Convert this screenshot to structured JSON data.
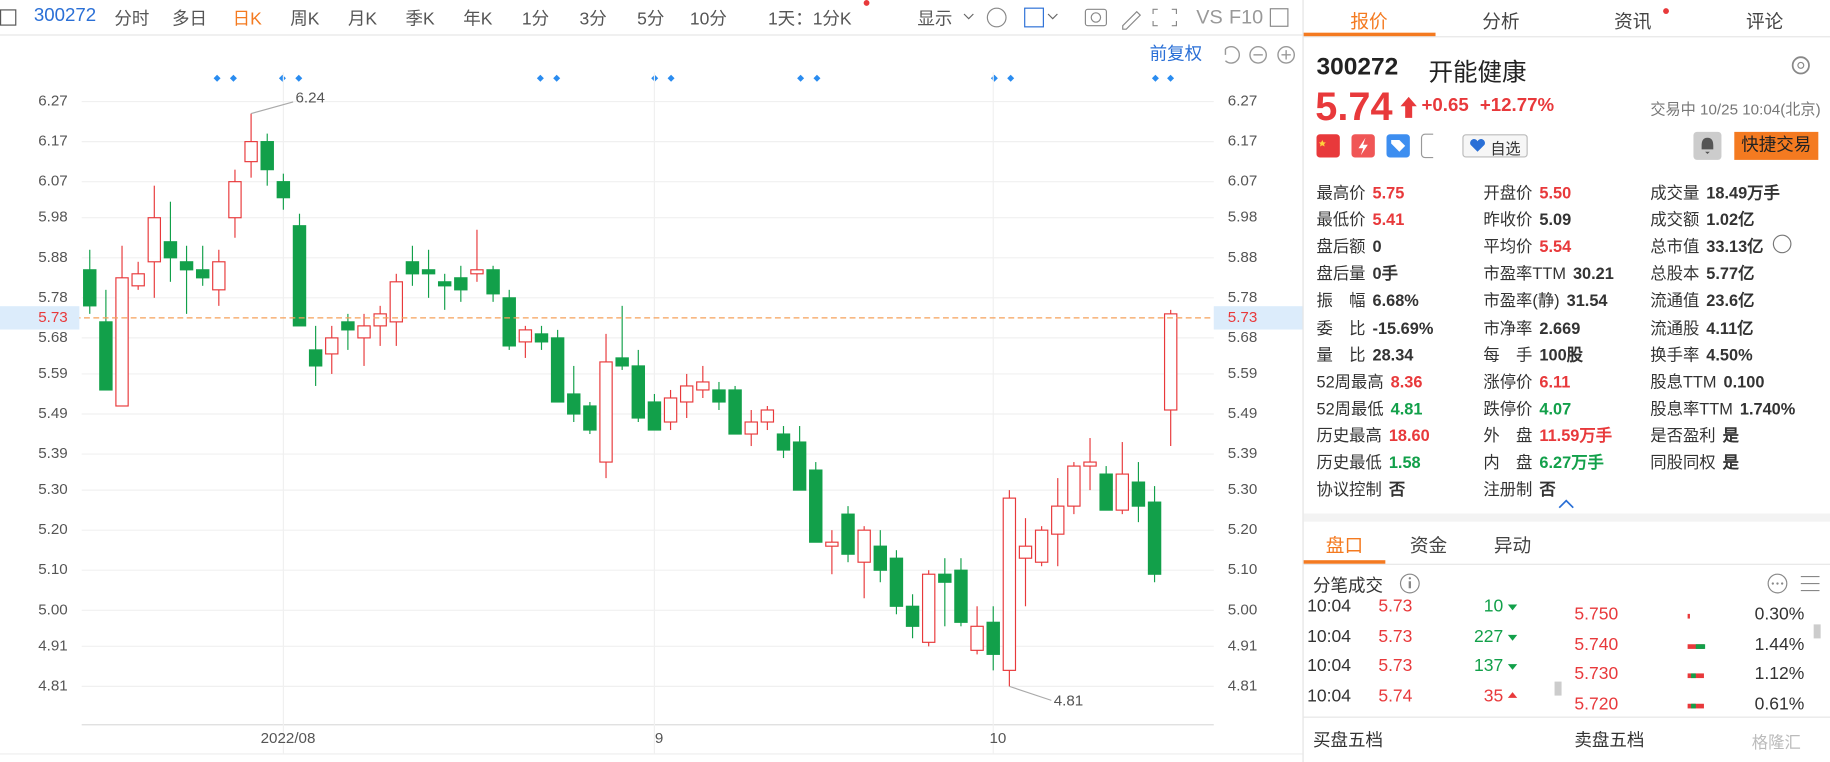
{
  "toolbar": {
    "code": "300272",
    "periods": [
      "分时",
      "多日",
      "日K",
      "周K",
      "月K",
      "季K",
      "年K",
      "1分",
      "3分",
      "5分",
      "10分"
    ],
    "active": 2,
    "interval": "1天：1分K",
    "display": "显示",
    "vs": "VS",
    "f10": "F10"
  },
  "chart_data": {
    "type": "candlestick",
    "adjust": "前复权",
    "categories": [
      null,
      null,
      null,
      null,
      null,
      null,
      null,
      null,
      null,
      null,
      null,
      null,
      "2022/08",
      null,
      null,
      null,
      null,
      null,
      null,
      null,
      null,
      null,
      null,
      null,
      null,
      null,
      null,
      null,
      null,
      null,
      null,
      null,
      null,
      null,
      null,
      "9",
      null,
      null,
      null,
      null,
      null,
      null,
      null,
      null,
      null,
      null,
      null,
      null,
      null,
      null,
      null,
      null,
      null,
      null,
      null,
      null,
      "10",
      null,
      null,
      null,
      null,
      null,
      null,
      null,
      null,
      null,
      null,
      null
    ],
    "open": [
      5.85,
      5.72,
      5.51,
      5.81,
      5.87,
      5.92,
      5.87,
      5.85,
      5.8,
      5.98,
      6.12,
      6.17,
      6.07,
      5.96,
      5.65,
      5.64,
      5.72,
      5.68,
      5.71,
      5.72,
      5.87,
      5.85,
      5.82,
      5.83,
      5.84,
      5.85,
      5.78,
      5.67,
      5.69,
      5.68,
      5.54,
      5.51,
      5.37,
      5.63,
      5.61,
      5.52,
      5.47,
      5.52,
      5.55,
      5.55,
      5.55,
      5.44,
      5.47,
      5.44,
      5.42,
      5.35,
      5.16,
      5.24,
      5.12,
      5.16,
      5.13,
      5.01,
      4.92,
      5.09,
      5.1,
      4.9,
      4.97,
      4.85,
      5.13,
      5.12,
      5.19,
      5.26,
      5.36,
      5.34,
      5.25,
      5.32,
      5.27,
      5.5
    ],
    "high": [
      5.9,
      5.8,
      5.91,
      5.87,
      6.06,
      6.02,
      5.91,
      5.91,
      5.9,
      6.1,
      6.24,
      6.19,
      6.09,
      5.99,
      5.71,
      5.71,
      5.74,
      5.74,
      5.76,
      5.84,
      5.91,
      5.9,
      5.84,
      5.86,
      5.95,
      5.86,
      5.8,
      5.71,
      5.71,
      5.7,
      5.61,
      5.52,
      5.69,
      5.76,
      5.65,
      5.54,
      5.55,
      5.59,
      5.61,
      5.57,
      5.56,
      5.5,
      5.51,
      5.46,
      5.46,
      5.37,
      5.2,
      5.26,
      5.21,
      5.2,
      5.15,
      5.04,
      5.1,
      5.13,
      5.13,
      5.01,
      5.01,
      5.3,
      5.23,
      5.21,
      5.33,
      5.37,
      5.43,
      5.36,
      5.42,
      5.37,
      5.31,
      5.75
    ],
    "low": [
      5.74,
      5.55,
      5.51,
      5.8,
      5.78,
      5.82,
      5.74,
      5.81,
      5.76,
      5.93,
      6.08,
      6.06,
      6.0,
      5.71,
      5.56,
      5.59,
      5.65,
      5.61,
      5.66,
      5.66,
      5.81,
      5.78,
      5.75,
      5.77,
      5.82,
      5.77,
      5.65,
      5.63,
      5.65,
      5.52,
      5.47,
      5.44,
      5.33,
      5.6,
      5.47,
      5.45,
      5.45,
      5.48,
      5.53,
      5.5,
      5.44,
      5.41,
      5.45,
      5.38,
      5.3,
      5.17,
      5.09,
      5.12,
      5.03,
      5.07,
      4.99,
      4.93,
      4.91,
      4.96,
      4.96,
      4.89,
      4.85,
      4.81,
      5.01,
      5.11,
      5.11,
      5.24,
      5.3,
      5.25,
      5.24,
      5.22,
      5.07,
      5.41
    ],
    "close": [
      5.76,
      5.55,
      5.83,
      5.84,
      5.98,
      5.88,
      5.85,
      5.83,
      5.87,
      6.07,
      6.17,
      6.1,
      6.03,
      5.71,
      5.61,
      5.68,
      5.7,
      5.71,
      5.74,
      5.82,
      5.84,
      5.84,
      5.81,
      5.8,
      5.85,
      5.79,
      5.66,
      5.7,
      5.67,
      5.52,
      5.49,
      5.45,
      5.62,
      5.61,
      5.48,
      5.45,
      5.53,
      5.56,
      5.57,
      5.52,
      5.44,
      5.47,
      5.5,
      5.4,
      5.3,
      5.17,
      5.17,
      5.14,
      5.2,
      5.1,
      5.01,
      4.96,
      5.09,
      5.07,
      4.97,
      4.96,
      4.89,
      5.28,
      5.16,
      5.2,
      5.26,
      5.36,
      5.37,
      5.25,
      5.34,
      5.26,
      5.09,
      5.74
    ],
    "up_color": "#e8393b",
    "down_color": "#12a04a",
    "ylim": [
      4.72,
      6.34
    ],
    "yticks": [
      6.27,
      6.17,
      6.07,
      5.98,
      5.88,
      5.78,
      5.68,
      5.59,
      5.49,
      5.39,
      {
        "value": 5.3,
        "label": "5.30"
      },
      {
        "value": 5.2,
        "label": "5.20"
      },
      {
        "value": 5.1,
        "label": "5.10"
      },
      {
        "value": 5,
        "label": "5.00"
      },
      4.91,
      4.81
    ],
    "last_price": 5.73,
    "max_label": 6.24,
    "min_label": 4.81,
    "grid": true
  },
  "quote": {
    "tabs": [
      "报价",
      "分析",
      "资讯",
      "评论"
    ],
    "active": 0,
    "code": "300272",
    "name": "开能健康",
    "price": "5.74",
    "change": "+0.65",
    "change_pct": "+12.77%",
    "status": "交易中 10/25 10:04(北京)",
    "watch": "自选",
    "trade": "快捷交易",
    "stats": [
      [
        {
          "label": "最高价",
          "value": "5.75",
          "color": "red"
        },
        {
          "label": "最低价",
          "value": "5.41",
          "color": "red"
        },
        {
          "label": "盘后额",
          "value": "0"
        },
        {
          "label": "盘后量",
          "value": "0手"
        },
        {
          "label": "振　幅",
          "value": "6.68%"
        },
        {
          "label": "委　比",
          "value": "-15.69%"
        },
        {
          "label": "量　比",
          "value": "28.34"
        },
        {
          "label": "52周最高",
          "value": "8.36",
          "color": "red"
        },
        {
          "label": "52周最低",
          "value": "4.81",
          "color": "green"
        },
        {
          "label": "历史最高",
          "value": "18.60",
          "color": "red"
        },
        {
          "label": "历史最低",
          "value": "1.58",
          "color": "green"
        },
        {
          "label": "协议控制",
          "value": "否"
        }
      ],
      [
        {
          "label": "开盘价",
          "value": "5.50",
          "color": "red"
        },
        {
          "label": "昨收价",
          "value": "5.09"
        },
        {
          "label": "平均价",
          "value": "5.54",
          "color": "red"
        },
        {
          "label": "市盈率TTM",
          "value": "30.21"
        },
        {
          "label": "市盈率(静)",
          "value": "31.54"
        },
        {
          "label": "市净率",
          "value": "2.669"
        },
        {
          "label": "每　手",
          "value": "100股"
        },
        {
          "label": "涨停价",
          "value": "6.11",
          "color": "red"
        },
        {
          "label": "跌停价",
          "value": "4.07",
          "color": "green"
        },
        {
          "label": "外　盘",
          "value": "11.59万手",
          "color": "red"
        },
        {
          "label": "内　盘",
          "value": "6.27万手",
          "color": "green"
        },
        {
          "label": "注册制",
          "value": "否"
        }
      ],
      [
        {
          "label": "成交量",
          "value": "18.49万手"
        },
        {
          "label": "成交额",
          "value": "1.02亿"
        },
        {
          "label": "总市值",
          "value": "33.13亿"
        },
        {
          "label": "总股本",
          "value": "5.77亿"
        },
        {
          "label": "流通值",
          "value": "23.6亿"
        },
        {
          "label": "流通股",
          "value": "4.11亿"
        },
        {
          "label": "换手率",
          "value": "4.50%"
        },
        {
          "label": "股息TTM",
          "value": "0.100"
        },
        {
          "label": "股息率TTM",
          "value": "1.740%"
        },
        {
          "label": "是否盈利",
          "value": "是"
        },
        {
          "label": "同股同权",
          "value": "是"
        }
      ]
    ]
  },
  "book": {
    "tabs": [
      "盘口",
      "资金",
      "异动"
    ],
    "active": 0,
    "ticks_title": "分笔成交",
    "trades": [
      {
        "time": "10:04",
        "price": "5.73",
        "volume": "10",
        "direction": "down"
      },
      {
        "time": "10:04",
        "price": "5.73",
        "volume": "227",
        "direction": "down"
      },
      {
        "time": "10:04",
        "price": "5.73",
        "volume": "137",
        "direction": "down"
      },
      {
        "time": "10:04",
        "price": "5.74",
        "volume": "35",
        "direction": "up"
      }
    ],
    "levels": [
      {
        "price": "5.750",
        "pct": "0.30%"
      },
      {
        "price": "5.740",
        "pct": "1.44%"
      },
      {
        "price": "5.730",
        "pct": "1.12%"
      },
      {
        "price": "5.720",
        "pct": "0.61%"
      }
    ],
    "buy_title": "买盘五档",
    "sell_title": "卖盘五档"
  },
  "watermark": "格隆汇"
}
